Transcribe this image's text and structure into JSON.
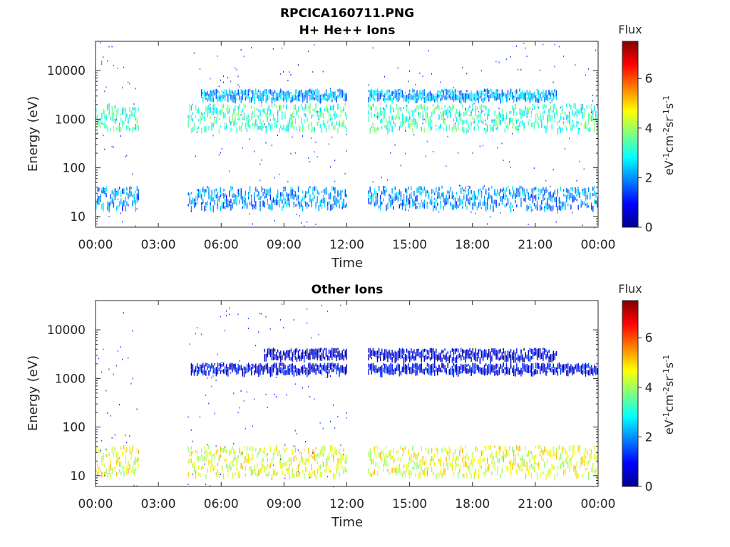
{
  "figure": {
    "title_line1": "RPCICA160711.PNG"
  },
  "chart_data": [
    {
      "type": "heatmap",
      "title": "H+ He++ Ions",
      "xlabel": "Time",
      "ylabel": "Energy (eV)",
      "x_ticks": [
        "00:00",
        "03:00",
        "06:00",
        "09:00",
        "12:00",
        "15:00",
        "18:00",
        "21:00",
        "00:00"
      ],
      "x_range_hours": [
        0,
        24
      ],
      "y_scale": "log",
      "y_ticks": [
        "10",
        "100",
        "1000",
        "10000"
      ],
      "y_tick_values": [
        10,
        100,
        1000,
        10000
      ],
      "y_range": [
        6,
        40000
      ],
      "colorbar": {
        "title": "Flux",
        "label": "eV-1cm-2sr-1s-1",
        "ticks": [
          "0",
          "2",
          "4",
          "6"
        ],
        "range": [
          0,
          7.5
        ],
        "colormap": "jet"
      },
      "data_gaps_hours": [
        [
          2.1,
          4.4
        ],
        [
          12.0,
          13.0
        ]
      ],
      "bands": [
        {
          "name": "low energy",
          "t": [
            0,
            24
          ],
          "energy_ev": [
            15,
            40
          ],
          "flux_approx": 2.0
        },
        {
          "name": "mid energy",
          "t": [
            0,
            24
          ],
          "energy_ev": [
            600,
            2000
          ],
          "flux_approx": 3.2
        },
        {
          "name": "upper energy",
          "t": [
            5,
            22
          ],
          "energy_ev": [
            2500,
            4000
          ],
          "flux_approx": 2.2
        }
      ]
    },
    {
      "type": "heatmap",
      "title": "Other Ions",
      "xlabel": "Time",
      "ylabel": "Energy (eV)",
      "x_ticks": [
        "00:00",
        "03:00",
        "06:00",
        "09:00",
        "12:00",
        "15:00",
        "18:00",
        "21:00",
        "00:00"
      ],
      "x_range_hours": [
        0,
        24
      ],
      "y_scale": "log",
      "y_ticks": [
        "10",
        "100",
        "1000",
        "10000"
      ],
      "y_tick_values": [
        10,
        100,
        1000,
        10000
      ],
      "y_range": [
        6,
        40000
      ],
      "colorbar": {
        "title": "Flux",
        "label": "eV-1cm-2sr-1s-1",
        "ticks": [
          "0",
          "2",
          "4",
          "6"
        ],
        "range": [
          0,
          7.5
        ],
        "colormap": "jet"
      },
      "data_gaps_hours": [
        [
          2.1,
          4.4
        ],
        [
          12.0,
          13.0
        ]
      ],
      "bands": [
        {
          "name": "low energy",
          "t": [
            0,
            24
          ],
          "energy_ev": [
            10,
            40
          ],
          "flux_approx": 4.5
        },
        {
          "name": "mid energy",
          "t": [
            4.5,
            24
          ],
          "energy_ev": [
            1300,
            2000
          ],
          "flux_approx": 0.8
        },
        {
          "name": "upper energy",
          "t": [
            8,
            22
          ],
          "energy_ev": [
            2500,
            4000
          ],
          "flux_approx": 0.6
        }
      ]
    }
  ]
}
